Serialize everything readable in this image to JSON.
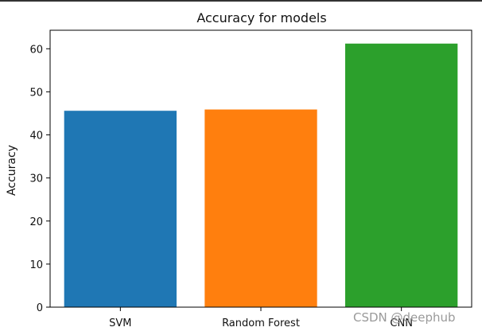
{
  "chart_data": {
    "type": "bar",
    "title": "Accuracy for models",
    "xlabel": "",
    "ylabel": "Accuracy",
    "categories": [
      "SVM",
      "Random Forest",
      "CNN"
    ],
    "values": [
      45.6,
      45.9,
      61.2
    ],
    "colors": [
      "#1f77b4",
      "#ff7f0e",
      "#2ca02c"
    ],
    "ylim": [
      0,
      64.3
    ],
    "yticks": [
      0,
      10,
      20,
      30,
      40,
      50,
      60
    ],
    "grid": false,
    "legend": "none"
  },
  "watermark": "CSDN @deephub"
}
